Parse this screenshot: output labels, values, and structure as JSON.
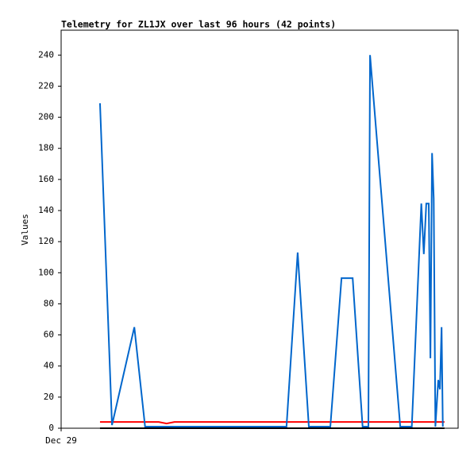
{
  "chart_data": {
    "type": "line",
    "title": "Telemetry for ZL1JX over last 96 hours (42 points)",
    "ylabel": "Values",
    "xlim": [
      0,
      96
    ],
    "xticks": [
      {
        "value": 0,
        "label": "Dec 29"
      }
    ],
    "ylim": [
      0,
      256
    ],
    "yticks": [
      0,
      20,
      40,
      60,
      80,
      100,
      120,
      140,
      160,
      180,
      200,
      220,
      240
    ],
    "series": [
      {
        "color": "#000000",
        "x": [
          9.4,
          92.7
        ],
        "values": [
          0,
          0
        ]
      },
      {
        "color": "#ff0000",
        "x": [
          9.4,
          23.6,
          25.5,
          27.4,
          92.7
        ],
        "values": [
          4,
          4,
          3,
          4,
          4
        ]
      },
      {
        "color": "#0066cc",
        "x": [
          9.4,
          12.3,
          17.7,
          20.3,
          54.5,
          57.2,
          59.9,
          65.1,
          67.8,
          70.5,
          72.9,
          74.3,
          74.7,
          82.0,
          84.8,
          87.1,
          87.7,
          88.3,
          88.9,
          89.3,
          89.7,
          90.1,
          90.5,
          91.2,
          91.6,
          92.0,
          92.3
        ],
        "values": [
          209,
          2,
          65,
          1,
          1,
          113,
          1,
          1,
          96.5,
          96.5,
          1,
          1,
          240,
          1,
          1,
          144.5,
          112,
          144.5,
          144.5,
          45,
          177,
          147.6,
          1,
          31,
          25,
          65,
          1
        ]
      }
    ]
  }
}
